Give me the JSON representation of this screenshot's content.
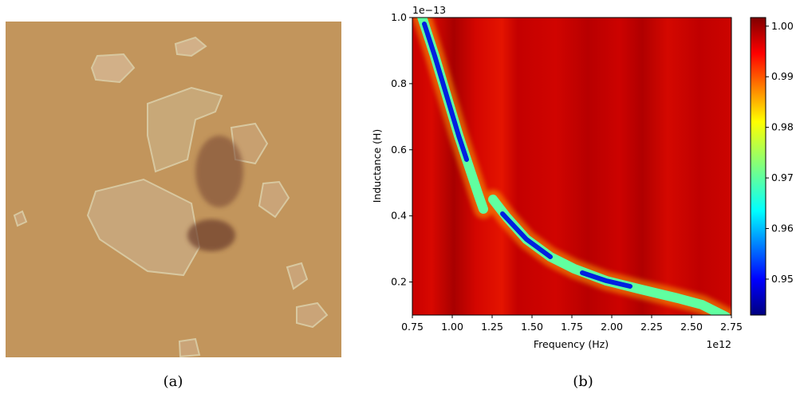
{
  "captions": [
    "(a)",
    "(b)"
  ],
  "chart_data": {
    "type": "heatmap",
    "xlabel": "Frequency (Hz)",
    "ylabel": "Inductance (H)",
    "x_offset_label": "1e12",
    "y_offset_label": "1e−13",
    "xlim": [
      0.75,
      2.75
    ],
    "xticks": [
      0.75,
      {
        "value": 1.0,
        "label": "1.00"
      },
      1.25,
      {
        "value": 1.5,
        "label": "1.50"
      },
      1.75,
      {
        "value": 2.0,
        "label": "2.00"
      },
      2.25,
      {
        "value": 2.5,
        "label": "2.50"
      },
      2.75
    ],
    "ylim": [
      0.1,
      1.0
    ],
    "yticks": [
      0.2,
      0.4,
      0.6,
      0.8,
      {
        "value": 1.0,
        "label": "1.0"
      }
    ],
    "colorbar": {
      "lim": [
        0.9429,
        1.0017
      ],
      "ticks": [
        0.95,
        0.96,
        0.97,
        0.98,
        0.99,
        {
          "value": 1.0,
          "label": "1.00"
        }
      ]
    }
  }
}
